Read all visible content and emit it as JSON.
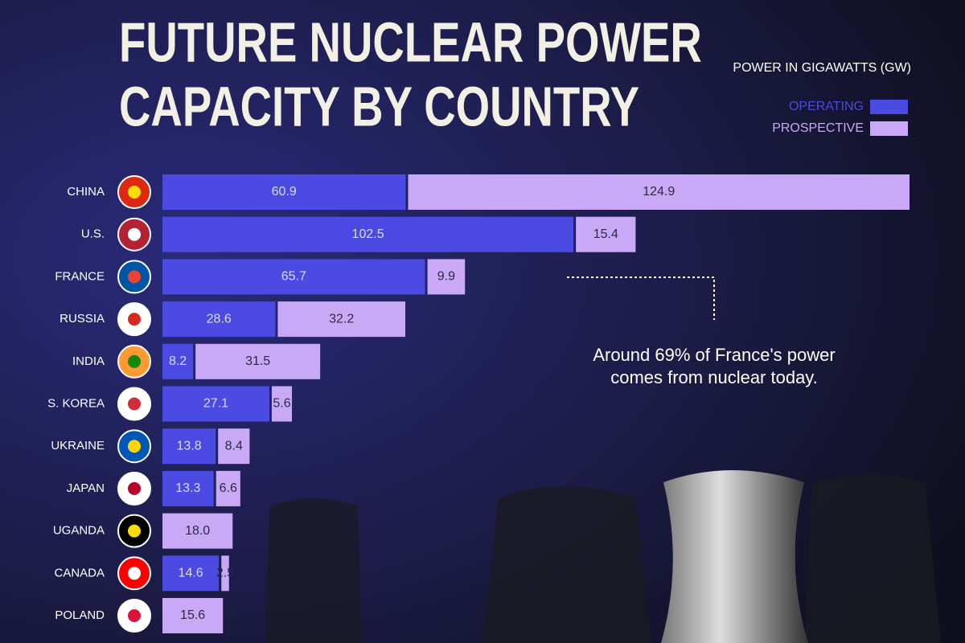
{
  "chart_data": {
    "type": "stacked-barh",
    "title": [
      "FUTURE NUCLEAR POWER",
      "CAPACITY BY COUNTRY"
    ],
    "legend_title": "POWER IN GIGAWATTS (GW)",
    "annotation": [
      "Around 69% of France's power",
      "comes from nuclear today."
    ],
    "categories": [
      "CHINA",
      "U.S.",
      "FRANCE",
      "RUSSIA",
      "INDIA",
      "S. KOREA",
      "UKRAINE",
      "JAPAN",
      "UGANDA",
      "CANADA",
      "POLAND"
    ],
    "series": [
      {
        "name": "OPERATING",
        "color": "#4b4be3",
        "values": [
          60.9,
          102.5,
          65.7,
          28.6,
          8.2,
          27.1,
          13.8,
          13.3,
          null,
          14.6,
          null
        ],
        "value_labels": [
          "60.9",
          "102.5",
          "65.7",
          "28.6",
          "8.2",
          "27.1",
          "13.8",
          "13.3",
          null,
          "14.6",
          null
        ]
      },
      {
        "name": "PROSPECTIVE",
        "color": "#c9a9f6",
        "values": [
          124.9,
          15.4,
          9.9,
          32.2,
          31.5,
          5.6,
          8.4,
          6.6,
          18,
          2.5,
          15.6
        ],
        "value_labels": [
          "124.9",
          "15.4",
          "9.9",
          "32.2",
          "31.5",
          "5.6",
          "8.4",
          "6.6",
          "18.0",
          "2.5",
          "15.6"
        ]
      }
    ]
  }
}
